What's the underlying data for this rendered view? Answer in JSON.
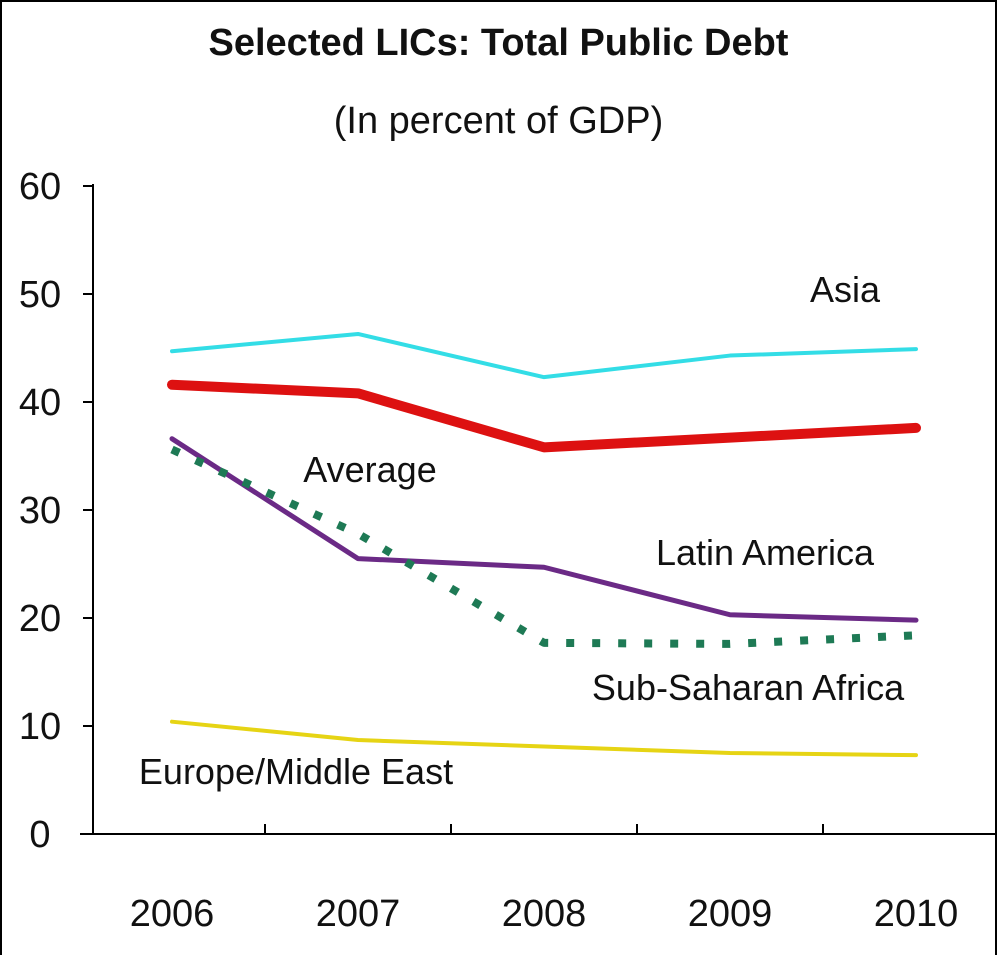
{
  "chart_data": {
    "type": "line",
    "title": "Selected LICs: Total Public Debt",
    "subtitle": "(In percent of GDP)",
    "x": [
      "2006",
      "2007",
      "2008",
      "2009",
      "2010"
    ],
    "ylim": [
      0,
      60
    ],
    "yticks": [
      "0",
      "10",
      "20",
      "30",
      "40",
      "50",
      "60"
    ],
    "grid": false,
    "series": [
      {
        "name": "Asia",
        "values": [
          44.7,
          46.3,
          42.3,
          44.3,
          44.9
        ],
        "color": "#33dde6",
        "style": "solid"
      },
      {
        "name": "Average",
        "values": [
          41.6,
          40.8,
          35.8,
          36.7,
          37.6
        ],
        "color": "#dd1111",
        "style": "solid"
      },
      {
        "name": "Latin America",
        "values": [
          36.6,
          25.5,
          24.7,
          20.3,
          19.8
        ],
        "color": "#6b2a86",
        "style": "solid"
      },
      {
        "name": "Sub-Saharan Africa",
        "values": [
          35.6,
          27.8,
          17.7,
          17.6,
          18.4
        ],
        "color": "#1e7a55",
        "style": "dotted"
      },
      {
        "name": "Europe/Middle East",
        "values": [
          10.4,
          8.7,
          8.1,
          7.5,
          7.3
        ],
        "color": "#e6d414",
        "style": "solid"
      }
    ]
  }
}
